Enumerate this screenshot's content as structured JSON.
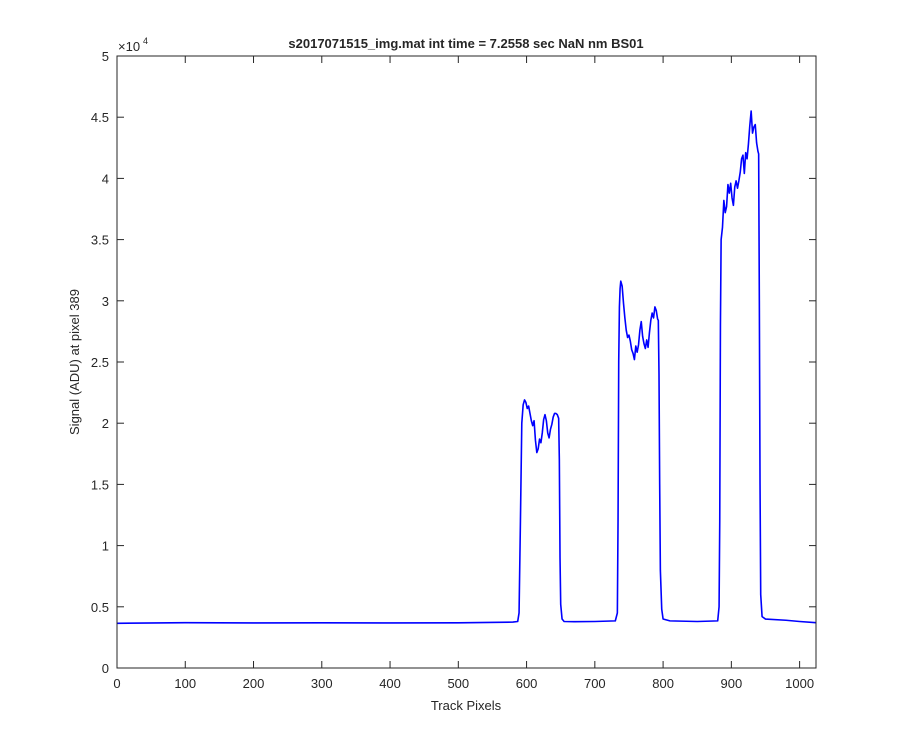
{
  "chart_data": {
    "type": "line",
    "title": "s2017071515_img.mat int time = 7.2558 sec  NaN nm BS01",
    "xlabel": "Track Pixels",
    "ylabel": "Signal (ADU) at pixel 389",
    "y_exponent_base": "×10",
    "y_exponent_power": "4",
    "xlim": [
      0,
      1024
    ],
    "ylim": [
      0,
      50000
    ],
    "x_ticks": [
      0,
      100,
      200,
      300,
      400,
      500,
      600,
      700,
      800,
      900,
      1000
    ],
    "x_tick_labels": [
      "0",
      "100",
      "200",
      "300",
      "400",
      "500",
      "600",
      "700",
      "800",
      "900",
      "1000"
    ],
    "y_ticks": [
      0,
      5000,
      10000,
      15000,
      20000,
      25000,
      30000,
      35000,
      40000,
      45000,
      50000
    ],
    "y_tick_labels": [
      "0",
      "0.5",
      "1",
      "1.5",
      "2",
      "2.5",
      "3",
      "3.5",
      "4",
      "4.5",
      "5"
    ],
    "grid": false,
    "series": [
      {
        "color": "#0000ff",
        "points": [
          [
            0,
            3650
          ],
          [
            100,
            3700
          ],
          [
            200,
            3680
          ],
          [
            300,
            3690
          ],
          [
            400,
            3680
          ],
          [
            500,
            3690
          ],
          [
            580,
            3750
          ],
          [
            587,
            3800
          ],
          [
            589,
            4500
          ],
          [
            591,
            12000
          ],
          [
            593,
            20000
          ],
          [
            595,
            21500
          ],
          [
            597,
            21900
          ],
          [
            599,
            21700
          ],
          [
            601,
            21200
          ],
          [
            603,
            21400
          ],
          [
            605,
            20800
          ],
          [
            607,
            20200
          ],
          [
            609,
            19800
          ],
          [
            611,
            20200
          ],
          [
            613,
            18600
          ],
          [
            615,
            17600
          ],
          [
            617,
            17900
          ],
          [
            619,
            18700
          ],
          [
            621,
            18400
          ],
          [
            623,
            19200
          ],
          [
            625,
            20300
          ],
          [
            627,
            20700
          ],
          [
            629,
            20200
          ],
          [
            631,
            19200
          ],
          [
            633,
            18800
          ],
          [
            635,
            19500
          ],
          [
            637,
            19900
          ],
          [
            639,
            20500
          ],
          [
            641,
            20800
          ],
          [
            643,
            20800
          ],
          [
            645,
            20700
          ],
          [
            647,
            20400
          ],
          [
            648,
            17000
          ],
          [
            649,
            9000
          ],
          [
            650,
            5200
          ],
          [
            652,
            4000
          ],
          [
            655,
            3800
          ],
          [
            670,
            3780
          ],
          [
            700,
            3800
          ],
          [
            730,
            3850
          ],
          [
            733,
            4500
          ],
          [
            734,
            12000
          ],
          [
            735,
            25000
          ],
          [
            736,
            29500
          ],
          [
            737,
            31000
          ],
          [
            738,
            31600
          ],
          [
            740,
            31200
          ],
          [
            742,
            29800
          ],
          [
            744,
            28600
          ],
          [
            746,
            27600
          ],
          [
            748,
            27000
          ],
          [
            750,
            27200
          ],
          [
            752,
            26700
          ],
          [
            754,
            26000
          ],
          [
            756,
            25700
          ],
          [
            758,
            25200
          ],
          [
            760,
            26300
          ],
          [
            762,
            25800
          ],
          [
            764,
            26400
          ],
          [
            766,
            27600
          ],
          [
            768,
            28300
          ],
          [
            770,
            27100
          ],
          [
            772,
            26500
          ],
          [
            774,
            26100
          ],
          [
            776,
            26800
          ],
          [
            778,
            26200
          ],
          [
            780,
            27400
          ],
          [
            782,
            28400
          ],
          [
            784,
            29000
          ],
          [
            786,
            28600
          ],
          [
            788,
            29500
          ],
          [
            790,
            29200
          ],
          [
            792,
            28500
          ],
          [
            793,
            28400
          ],
          [
            794,
            24000
          ],
          [
            795,
            15000
          ],
          [
            796,
            8000
          ],
          [
            798,
            4800
          ],
          [
            800,
            4000
          ],
          [
            810,
            3850
          ],
          [
            850,
            3800
          ],
          [
            880,
            3850
          ],
          [
            882,
            5000
          ],
          [
            883,
            12000
          ],
          [
            884,
            28000
          ],
          [
            885,
            35000
          ],
          [
            887,
            36000
          ],
          [
            889,
            38200
          ],
          [
            891,
            37200
          ],
          [
            893,
            37700
          ],
          [
            895,
            39500
          ],
          [
            897,
            38800
          ],
          [
            899,
            39600
          ],
          [
            901,
            38400
          ],
          [
            903,
            37800
          ],
          [
            905,
            39300
          ],
          [
            907,
            39800
          ],
          [
            909,
            39200
          ],
          [
            911,
            39800
          ],
          [
            913,
            40500
          ],
          [
            915,
            41600
          ],
          [
            917,
            41900
          ],
          [
            919,
            40400
          ],
          [
            921,
            42100
          ],
          [
            923,
            41600
          ],
          [
            925,
            42800
          ],
          [
            927,
            44300
          ],
          [
            929,
            45500
          ],
          [
            931,
            43700
          ],
          [
            933,
            44200
          ],
          [
            935,
            44400
          ],
          [
            937,
            42900
          ],
          [
            939,
            42200
          ],
          [
            940,
            42000
          ],
          [
            941,
            30000
          ],
          [
            942,
            15000
          ],
          [
            943,
            6000
          ],
          [
            945,
            4200
          ],
          [
            950,
            4000
          ],
          [
            980,
            3900
          ],
          [
            1000,
            3800
          ],
          [
            1024,
            3700
          ]
        ]
      }
    ]
  }
}
